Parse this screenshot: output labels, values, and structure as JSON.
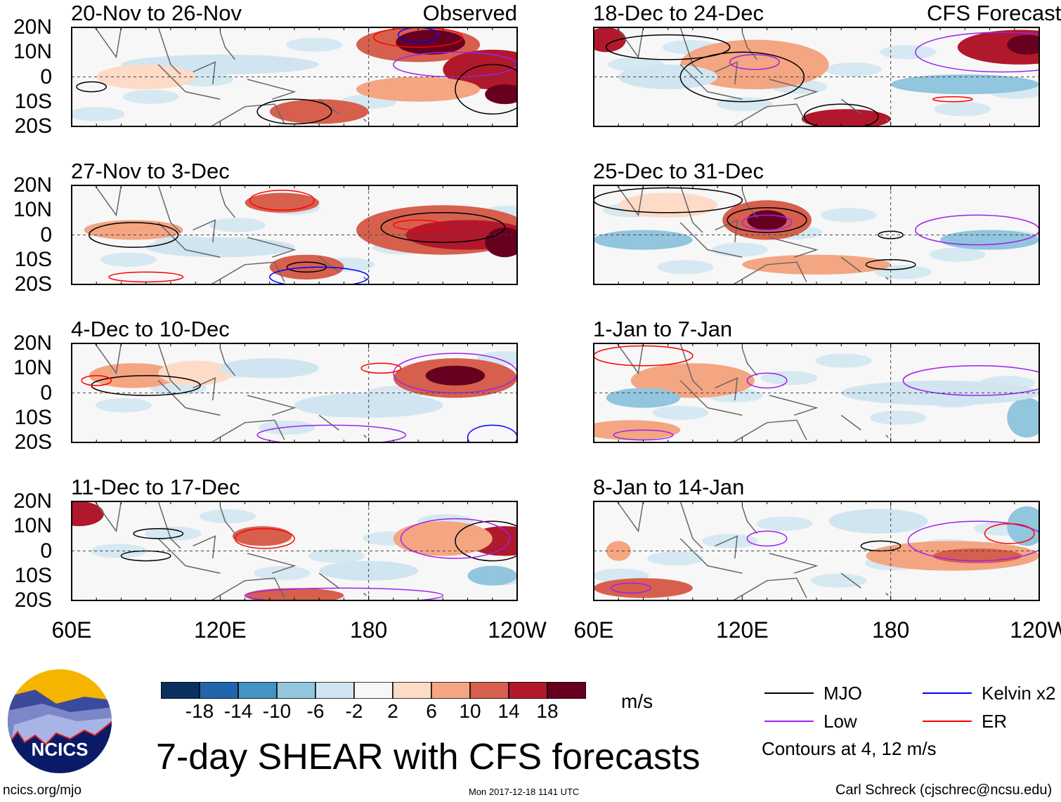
{
  "chart_data": {
    "type": "heatmap",
    "title": "7-day SHEAR with CFS forecasts",
    "units": "m/s",
    "observed_label": "Observed",
    "forecast_label": "CFS Forecast",
    "lon_range": [
      "60E",
      "120W"
    ],
    "lat_range": [
      "20S",
      "20N"
    ],
    "x_ticks": [
      "60E",
      "120E",
      "180",
      "120W"
    ],
    "y_ticks": [
      "20N",
      "10N",
      "0",
      "10S",
      "20S"
    ],
    "panels": [
      {
        "title": "20-Nov to 26-Nov",
        "kind": "observed"
      },
      {
        "title": "27-Nov to 3-Dec",
        "kind": "observed"
      },
      {
        "title": "4-Dec to 10-Dec",
        "kind": "observed"
      },
      {
        "title": "11-Dec to 17-Dec",
        "kind": "observed"
      },
      {
        "title": "18-Dec to 24-Dec",
        "kind": "forecast"
      },
      {
        "title": "25-Dec to 31-Dec",
        "kind": "forecast"
      },
      {
        "title": "1-Jan to 7-Jan",
        "kind": "forecast"
      },
      {
        "title": "8-Jan to 14-Jan",
        "kind": "forecast"
      }
    ],
    "colorbar": {
      "ticks": [
        "-18",
        "-14",
        "-10",
        "-6",
        "-2",
        "2",
        "6",
        "10",
        "14",
        "18"
      ],
      "colors": [
        "#0b2f5f",
        "#2166ac",
        "#4393c3",
        "#92c5de",
        "#d1e5f0",
        "#f7f7f7",
        "#fddbc7",
        "#f4a582",
        "#d6604d",
        "#b2182b",
        "#67001f"
      ]
    },
    "legend": [
      {
        "label": "MJO",
        "color": "#000000"
      },
      {
        "label": "Kelvin x2",
        "color": "#0000ff"
      },
      {
        "label": "Low",
        "color": "#a020f0"
      },
      {
        "label": "ER",
        "color": "#ff0000"
      }
    ],
    "contour_note": "Contours at 4, 12 m/s"
  },
  "footer": {
    "logo_text": "NCICS",
    "url": "ncics.org/mjo",
    "timestamp": "Mon 2017-12-18 1141 UTC",
    "author": "Carl Schreck (cjschrec@ncsu.edu)"
  }
}
